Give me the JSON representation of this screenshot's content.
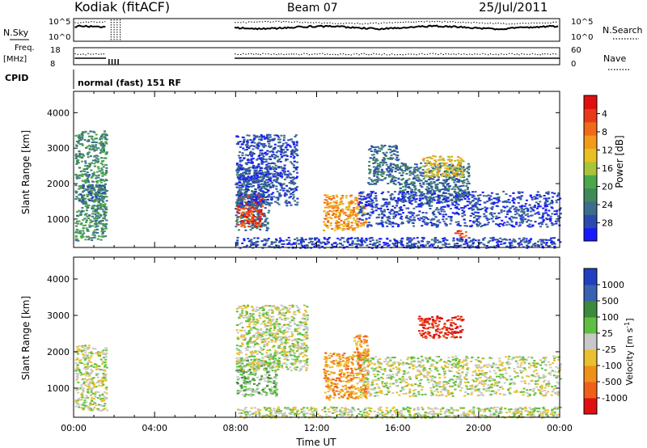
{
  "header": {
    "station": "Kodiak (fitACF)",
    "beam": "Beam 07",
    "date": "25/Jul/2011"
  },
  "params_panel": {
    "nsky_label": "N.Sky",
    "nsearch_label": "N.Search",
    "nsky_ticks": [
      "10^5",
      "10^0"
    ],
    "nsearch_ticks": [
      "10^5",
      "10^0"
    ],
    "freq_label_1": "Freq.",
    "freq_label_2": "[MHz]",
    "freq_ticks": [
      "18",
      "8"
    ],
    "nave_label": "Nave",
    "nave_ticks": [
      "60",
      "0"
    ],
    "cpid_label": "CPID",
    "cpid_text": "normal (fast) 151 RF"
  },
  "chart_data": [
    {
      "type": "heatmap",
      "name": "power",
      "ylabel": "Slant Range [km]",
      "xlabel": "",
      "xlim": [
        0,
        24
      ],
      "ylim": [
        200,
        4600
      ],
      "yticks": [
        1000,
        2000,
        3000,
        4000
      ],
      "colorbar": {
        "label": "Power [dB]",
        "ticks": [
          "4",
          "8",
          "12",
          "16",
          "20",
          "24",
          "28"
        ],
        "colors": [
          "#1a1aff",
          "#2a4ab0",
          "#3c6e8c",
          "#3f8a5a",
          "#4aa84a",
          "#a8c43a",
          "#e8c020",
          "#f29a1a",
          "#f06a1a",
          "#e83a1a",
          "#e01010"
        ]
      },
      "regions": [
        {
          "t0": 0.05,
          "t1": 1.6,
          "r0": 400,
          "r1": 3500,
          "level": 3
        },
        {
          "t0": 0.2,
          "t1": 1.6,
          "r0": 1500,
          "r1": 2000,
          "level": 2
        },
        {
          "t0": 7.95,
          "t1": 9.6,
          "r0": 700,
          "r1": 2500,
          "level": 2
        },
        {
          "t0": 8.0,
          "t1": 9.3,
          "r0": 800,
          "r1": 1700,
          "level": 9
        },
        {
          "t0": 8.0,
          "t1": 11.0,
          "r0": 1400,
          "r1": 3400,
          "level": 1
        },
        {
          "t0": 12.3,
          "t1": 14.4,
          "r0": 700,
          "r1": 1700,
          "level": 7
        },
        {
          "t0": 14.5,
          "t1": 16.0,
          "r0": 2000,
          "r1": 3100,
          "level": 2
        },
        {
          "t0": 16.0,
          "t1": 19.5,
          "r0": 1500,
          "r1": 2600,
          "level": 2
        },
        {
          "t0": 17.2,
          "t1": 19.2,
          "r0": 2200,
          "r1": 2800,
          "level": 6
        },
        {
          "t0": 18.8,
          "t1": 19.4,
          "r0": 500,
          "r1": 700,
          "level": 9
        },
        {
          "t0": 14.0,
          "t1": 24.0,
          "r0": 800,
          "r1": 1800,
          "level": 1
        },
        {
          "t0": 8.0,
          "t1": 24.0,
          "r0": 200,
          "r1": 500,
          "level": 1
        }
      ]
    },
    {
      "type": "heatmap",
      "name": "velocity",
      "ylabel": "Slant Range [km]",
      "xlabel": "Time UT",
      "xlim": [
        0,
        24
      ],
      "ylim": [
        200,
        4600
      ],
      "yticks": [
        1000,
        2000,
        3000,
        4000
      ],
      "xticks": [
        "00:00",
        "04:00",
        "08:00",
        "12:00",
        "16:00",
        "20:00",
        "00:00"
      ],
      "colorbar": {
        "label": "Velocity [m s^-1]",
        "ticks": [
          "1000",
          "500",
          "100",
          "25",
          "-25",
          "-100",
          "-500",
          "-1000"
        ],
        "colors": [
          "#2040c0",
          "#3a62b0",
          "#3c8a3c",
          "#5ec040",
          "#c8c8c8",
          "#e8c030",
          "#f0901a",
          "#f0601a",
          "#e01010"
        ]
      },
      "regions": [
        {
          "t0": 0.05,
          "t1": 1.6,
          "r0": 400,
          "r1": 2200,
          "level": 4
        },
        {
          "t0": 8.0,
          "t1": 10.0,
          "r0": 800,
          "r1": 1800,
          "level": 3
        },
        {
          "t0": 8.0,
          "t1": 11.5,
          "r0": 1500,
          "r1": 3300,
          "level": 4
        },
        {
          "t0": 12.3,
          "t1": 14.5,
          "r0": 700,
          "r1": 2000,
          "level": 6
        },
        {
          "t0": 13.8,
          "t1": 14.5,
          "r0": 1800,
          "r1": 2500,
          "level": 6
        },
        {
          "t0": 17.0,
          "t1": 19.2,
          "r0": 2400,
          "r1": 3000,
          "level": 8
        },
        {
          "t0": 14.0,
          "t1": 24.0,
          "r0": 800,
          "r1": 1900,
          "level": 4
        },
        {
          "t0": 8.0,
          "t1": 24.0,
          "r0": 200,
          "r1": 500,
          "level": 4
        }
      ]
    }
  ]
}
